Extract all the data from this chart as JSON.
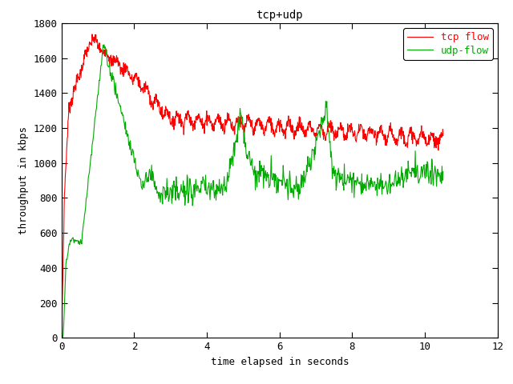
{
  "title": "tcp+udp",
  "xlabel": "time elapsed in seconds",
  "ylabel": "throughput in kbps",
  "xlim": [
    0,
    12
  ],
  "ylim": [
    0,
    1800
  ],
  "xticks": [
    0,
    2,
    4,
    6,
    8,
    10,
    12
  ],
  "yticks": [
    0,
    200,
    400,
    600,
    800,
    1000,
    1200,
    1400,
    1600,
    1800
  ],
  "tcp_color": "#ff0000",
  "udp_color": "#00aa00",
  "tcp_label": "tcp flow",
  "udp_label": "udp-flow",
  "background_color": "white",
  "linewidth": 0.8
}
